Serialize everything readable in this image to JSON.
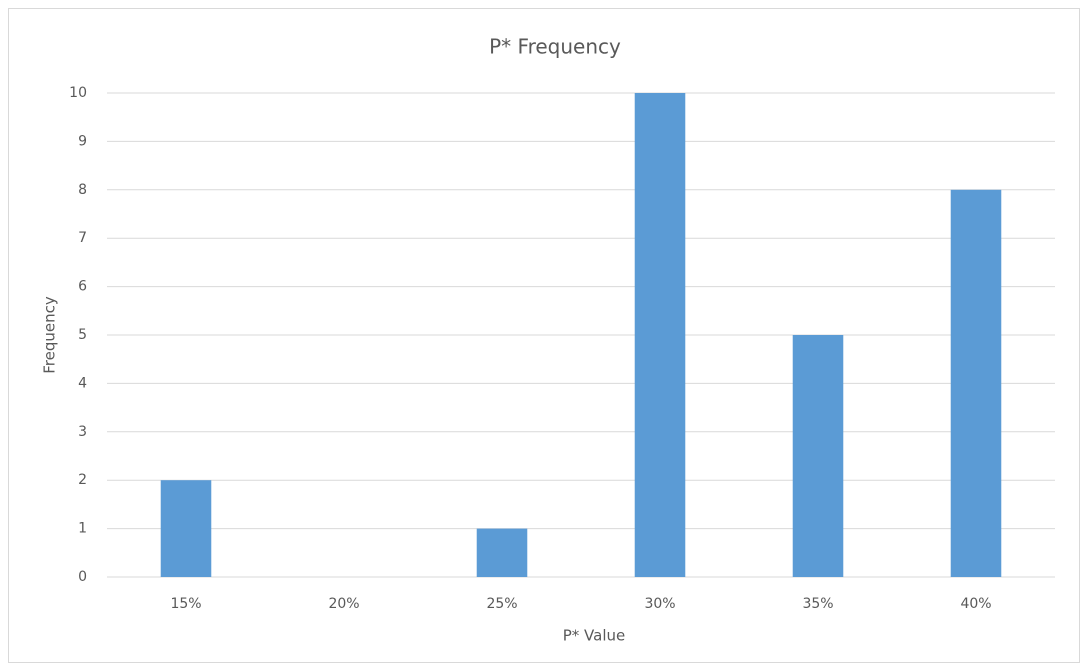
{
  "chart_data": {
    "type": "bar",
    "title": "P* Frequency",
    "x_label": "P* Value",
    "y_label": "Frequency",
    "categories": [
      "15%",
      "20%",
      "25%",
      "30%",
      "35%",
      "40%"
    ],
    "values": [
      2,
      0,
      1,
      10,
      5,
      8
    ],
    "color": "#5b9bd5",
    "ylim": [
      0,
      10
    ],
    "yticks": [
      0,
      1,
      2,
      3,
      4,
      5,
      6,
      7,
      8,
      9,
      10
    ],
    "grid": true
  }
}
